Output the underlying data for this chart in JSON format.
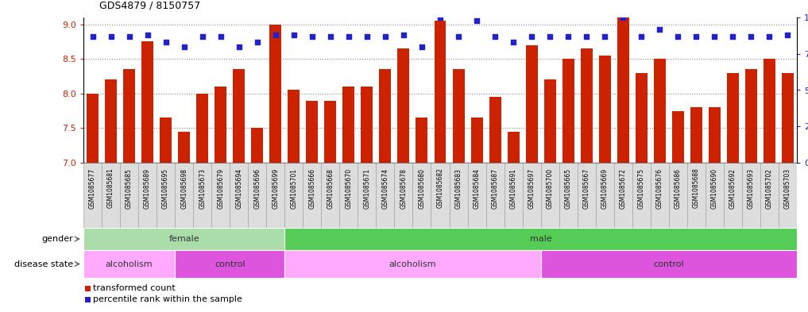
{
  "title": "GDS4879 / 8150757",
  "samples": [
    "GSM1085677",
    "GSM1085681",
    "GSM1085685",
    "GSM1085689",
    "GSM1085695",
    "GSM1085698",
    "GSM1085673",
    "GSM1085679",
    "GSM1085694",
    "GSM1085696",
    "GSM1085699",
    "GSM1085701",
    "GSM1085666",
    "GSM1085668",
    "GSM1085670",
    "GSM1085671",
    "GSM1085674",
    "GSM1085678",
    "GSM1085680",
    "GSM1085682",
    "GSM1085683",
    "GSM1085684",
    "GSM1085687",
    "GSM1085691",
    "GSM1085697",
    "GSM1085700",
    "GSM1085665",
    "GSM1085667",
    "GSM1085669",
    "GSM1085672",
    "GSM1085675",
    "GSM1085676",
    "GSM1085686",
    "GSM1085688",
    "GSM1085690",
    "GSM1085692",
    "GSM1085693",
    "GSM1085702",
    "GSM1085703"
  ],
  "bar_values": [
    8.0,
    8.2,
    8.35,
    8.75,
    7.65,
    7.45,
    8.0,
    8.1,
    8.35,
    7.5,
    9.0,
    8.05,
    7.9,
    7.9,
    8.1,
    8.1,
    8.35,
    8.65,
    7.65,
    9.05,
    8.35,
    7.65,
    7.95,
    7.45,
    8.7,
    8.2,
    8.5,
    8.65,
    8.55,
    9.1,
    8.3,
    8.5,
    7.75,
    7.8,
    7.8,
    8.3,
    8.35,
    8.5,
    8.3
  ],
  "percentile_values": [
    87,
    87,
    87,
    88,
    83,
    80,
    87,
    87,
    80,
    83,
    88,
    88,
    87,
    87,
    87,
    87,
    87,
    88,
    80,
    100,
    87,
    98,
    87,
    83,
    87,
    87,
    87,
    87,
    87,
    100,
    87,
    92,
    87,
    87,
    87,
    87,
    87,
    87,
    88
  ],
  "ylim_left": [
    7.0,
    9.1
  ],
  "ylim_right": [
    0,
    100
  ],
  "yticks_left": [
    7.0,
    7.5,
    8.0,
    8.5,
    9.0
  ],
  "yticks_right": [
    0,
    25,
    50,
    75,
    100
  ],
  "bar_color": "#cc2200",
  "dot_color": "#2222cc",
  "gender_regions": [
    {
      "label": "female",
      "start": 0,
      "end": 11,
      "color": "#aaddaa"
    },
    {
      "label": "male",
      "start": 11,
      "end": 39,
      "color": "#55cc55"
    }
  ],
  "disease_regions": [
    {
      "label": "alcoholism",
      "start": 0,
      "end": 5,
      "color": "#ffaaff"
    },
    {
      "label": "control",
      "start": 5,
      "end": 11,
      "color": "#dd55dd"
    },
    {
      "label": "alcoholism",
      "start": 11,
      "end": 25,
      "color": "#ffaaff"
    },
    {
      "label": "control",
      "start": 25,
      "end": 39,
      "color": "#dd55dd"
    }
  ],
  "gender_label": "gender",
  "disease_label": "disease state",
  "legend_bar_label": "transformed count",
  "legend_dot_label": "percentile rank within the sample",
  "background_color": "#ffffff",
  "grid_color": "#888888",
  "tick_label_bg": "#dddddd",
  "tick_label_border": "#999999"
}
